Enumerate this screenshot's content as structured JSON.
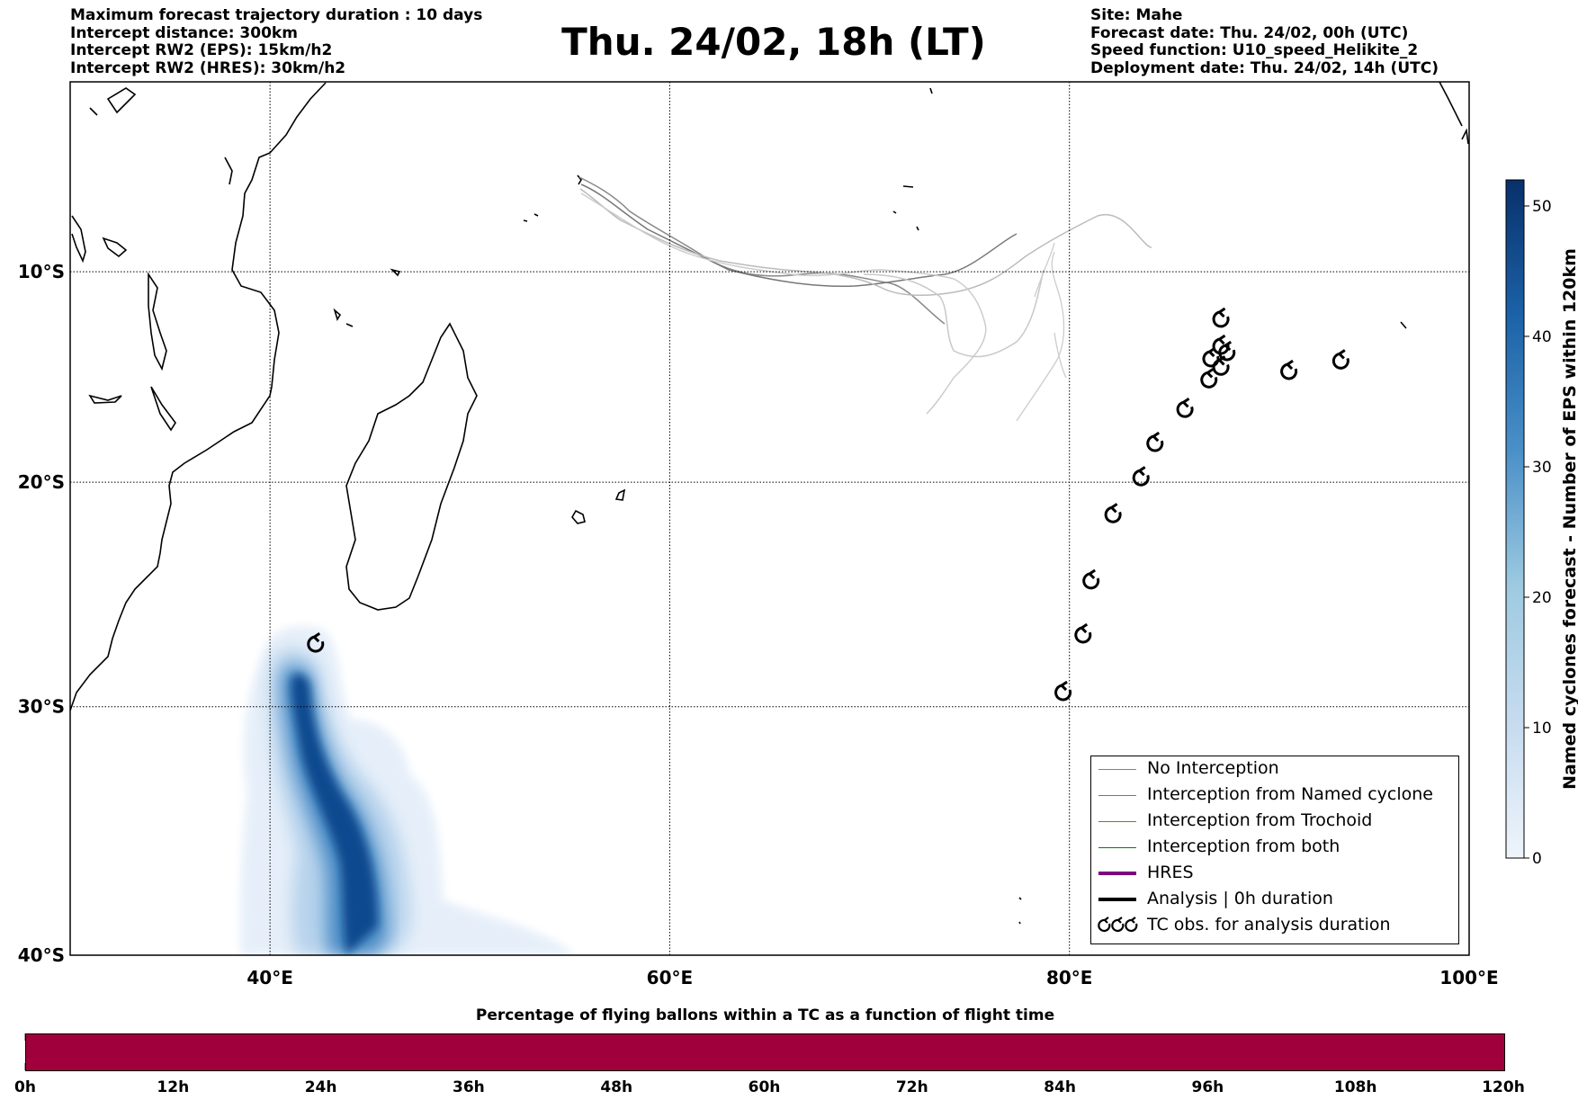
{
  "header_left": [
    "Maximum forecast trajectory duration : 10 days",
    "Intercept distance: 300km",
    "Intercept RW2 (EPS):  15km/h2",
    "Intercept RW2 (HRES): 30km/h2"
  ],
  "header_right": [
    "Site: Mahe",
    "Forecast date: Thu. 24/02, 00h (UTC)",
    "Speed function: U10_speed_Helikite_2",
    "Deployment date: Thu. 24/02, 14h (UTC)"
  ],
  "title": "Thu. 24/02, 18h (LT)",
  "map": {
    "lon_range": [
      30,
      100
    ],
    "lat_range": [
      -40,
      -0.7
    ],
    "lat_gridlines": [
      {
        "lat": -10,
        "label": "10°S"
      },
      {
        "lat": -20,
        "label": "20°S"
      },
      {
        "lat": -30,
        "label": "30°S"
      },
      {
        "lat": -40,
        "label": "40°S"
      }
    ],
    "lon_gridlines": [
      {
        "lon": 40,
        "label": "40°E"
      },
      {
        "lon": 60,
        "label": "60°E"
      },
      {
        "lon": 80,
        "label": "80°E"
      },
      {
        "lon": 100,
        "label": "100°E"
      }
    ],
    "tc_obs": [
      {
        "lon": 42.3,
        "lat": -27.3
      },
      {
        "lon": 79.7,
        "lat": -29.4
      },
      {
        "lon": 80.7,
        "lat": -26.9
      },
      {
        "lon": 81.1,
        "lat": -24.5
      },
      {
        "lon": 82.2,
        "lat": -21.5
      },
      {
        "lon": 83.6,
        "lat": -19.8
      },
      {
        "lon": 84.3,
        "lat": -18.2
      },
      {
        "lon": 85.8,
        "lat": -16.6
      },
      {
        "lon": 87.0,
        "lat": -15.2
      },
      {
        "lon": 87.6,
        "lat": -14.6
      },
      {
        "lon": 87.1,
        "lat": -14.2
      },
      {
        "lon": 87.9,
        "lat": -13.9
      },
      {
        "lon": 87.6,
        "lat": -13.6
      },
      {
        "lon": 87.6,
        "lat": -12.3
      },
      {
        "lon": 91.0,
        "lat": -14.8
      },
      {
        "lon": 93.6,
        "lat": -14.3
      }
    ]
  },
  "colorbar": {
    "label": "Named cyclones forecast - Number of EPS within 120km",
    "min": 0,
    "max": 52,
    "ticks": [
      "0",
      "10",
      "20",
      "30",
      "40",
      "50"
    ],
    "colors": [
      "#deebf7",
      "#9ecae1",
      "#6baed6",
      "#3182bd",
      "#08519c",
      "#08306b"
    ]
  },
  "legend": [
    {
      "label": "No Interception",
      "color": "#808080",
      "width": 1
    },
    {
      "label": "Interception from Named cyclone",
      "color": "#ff4500",
      "width": 1
    },
    {
      "label": "Interception from Trochoid",
      "color": "#808000",
      "width": 1
    },
    {
      "label": "Interception from both",
      "color": "#008000",
      "width": 1
    },
    {
      "label": "HRES",
      "color": "#800080",
      "width": 4
    },
    {
      "label": "Analysis | 0h duration",
      "color": "#000000",
      "width": 4
    },
    {
      "label": "TC obs. for analysis duration",
      "icon": "ᓀᓀᓀ"
    }
  ],
  "timeline": {
    "title": "Percentage of flying ballons within a TC as a function of flight time",
    "ticks": [
      "0h",
      "12h",
      "24h",
      "36h",
      "48h",
      "60h",
      "72h",
      "84h",
      "96h",
      "108h",
      "120h"
    ],
    "bar_color": "#a0003c"
  }
}
